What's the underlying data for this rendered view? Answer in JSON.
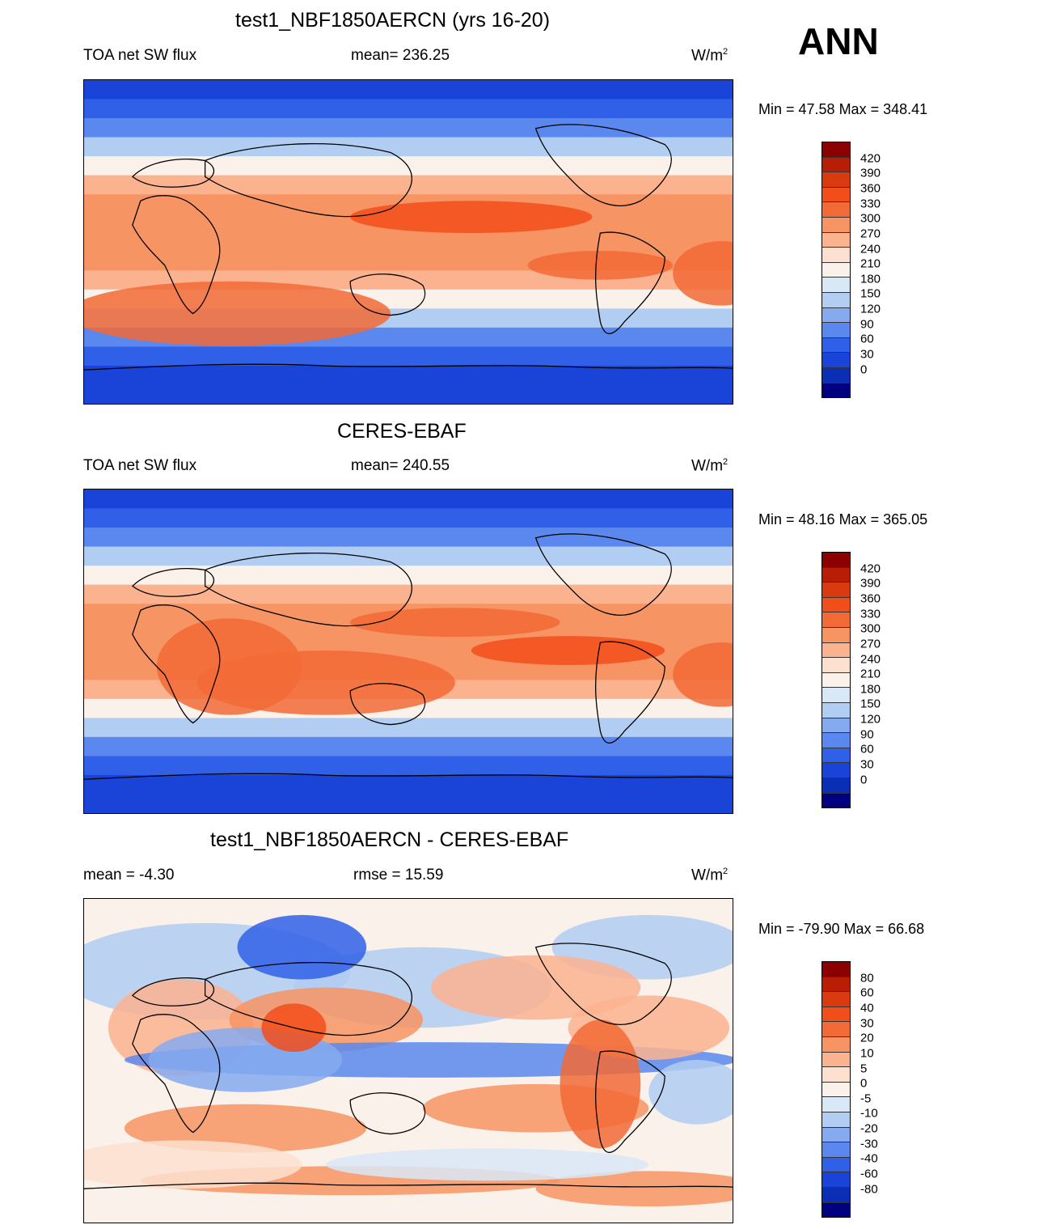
{
  "season": "ANN",
  "panels": [
    {
      "title": "test1_NBF1850AERCN (yrs 16-20)",
      "left_label": "TOA net SW flux",
      "center_label": "mean= 236.25",
      "units": "W/m",
      "units_sup": "2",
      "minmax": "Min =  47.58 Max = 348.41",
      "colorbar_labels": [
        "420",
        "390",
        "360",
        "330",
        "300",
        "270",
        "240",
        "210",
        "180",
        "150",
        "120",
        "90",
        "60",
        "30",
        "0"
      ]
    },
    {
      "title": "CERES-EBAF",
      "left_label": "TOA net SW flux",
      "center_label": "mean= 240.55",
      "units": "W/m",
      "units_sup": "2",
      "minmax": "Min =  48.16 Max = 365.05",
      "colorbar_labels": [
        "420",
        "390",
        "360",
        "330",
        "300",
        "270",
        "240",
        "210",
        "180",
        "150",
        "120",
        "90",
        "60",
        "30",
        "0"
      ]
    },
    {
      "title": "test1_NBF1850AERCN - CERES-EBAF",
      "left_label": "mean =  -4.30",
      "center_label": "rmse =  15.59",
      "units": "W/m",
      "units_sup": "2",
      "minmax": "Min = -79.90 Max =  66.68",
      "colorbar_labels": [
        "80",
        "60",
        "40",
        "30",
        "20",
        "10",
        "5",
        "0",
        "-5",
        "-10",
        "-20",
        "-30",
        "-40",
        "-60",
        "-80"
      ]
    }
  ],
  "colors": {
    "palette": [
      "#8b0000",
      "#b81d06",
      "#d93a10",
      "#f24e1a",
      "#f26a36",
      "#f79463",
      "#fbb38f",
      "#fde0cf",
      "#f9f1ea",
      "#d9e8f7",
      "#b2cdf2",
      "#85aaf0",
      "#5b88ef",
      "#3060e8",
      "#1a44d8",
      "#0a2fb5",
      "#000080"
    ]
  },
  "map_layers": {
    "mean_rows": [
      {
        "level": 2
      },
      {
        "level": 3
      },
      {
        "level": 4
      },
      {
        "level": 6
      },
      {
        "level": 8
      },
      {
        "level": 10
      },
      {
        "level": 11
      },
      {
        "level": 11
      },
      {
        "level": 11
      },
      {
        "level": 11
      },
      {
        "level": 10
      },
      {
        "level": 8
      },
      {
        "level": 6
      },
      {
        "level": 4
      },
      {
        "level": 3
      },
      {
        "level": 2
      },
      {
        "level": 2
      }
    ]
  }
}
